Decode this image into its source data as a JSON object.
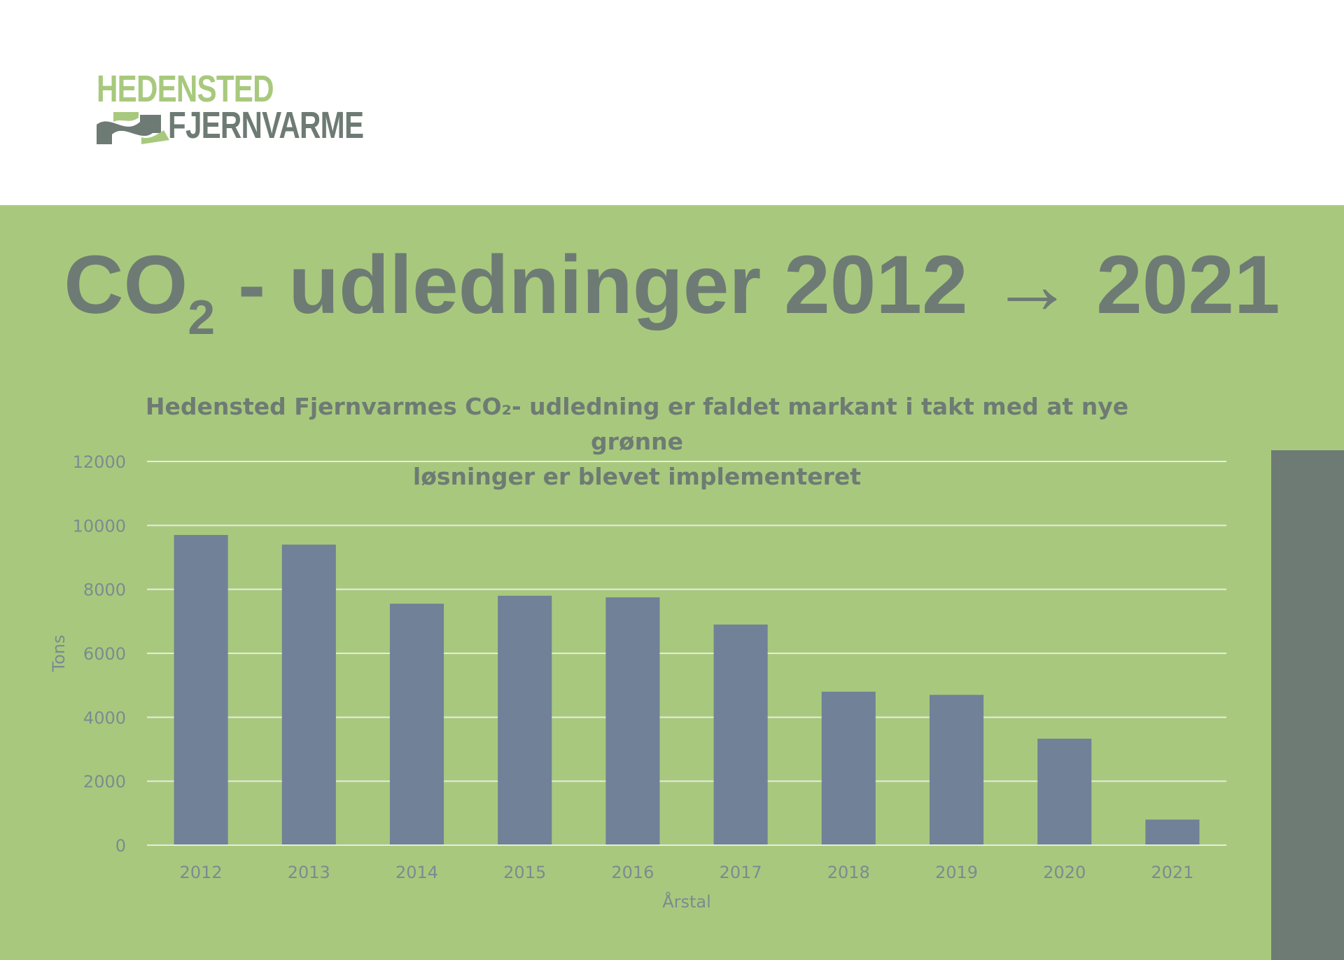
{
  "logo": {
    "line1": "HEDENSTED",
    "line2": "FJERNVARME",
    "colors": {
      "light": "#a8c97d",
      "dark": "#6e7b74"
    }
  },
  "headline": {
    "prefix": "CO",
    "subscript": "2",
    "suffix": " - udledninger 2012 → 2021"
  },
  "colors": {
    "panel": "#a8c97d",
    "accent": "#6e7b74",
    "bar": "#708198",
    "grid": "#e6ecdf",
    "axis_text": "#7d8a91"
  },
  "chart_data": {
    "type": "bar",
    "title": "Hedensted Fjernvarmes CO₂- udledning er faldet markant i takt med at nye grønne løsninger er blevet implementeret",
    "title_lines": [
      "Hedensted Fjernvarmes CO₂- udledning er faldet markant i takt med at nye grønne",
      "løsninger er blevet implementeret"
    ],
    "categories": [
      "2012",
      "2013",
      "2014",
      "2015",
      "2016",
      "2017",
      "2018",
      "2019",
      "2020",
      "2021"
    ],
    "values": [
      9700,
      9400,
      7550,
      7800,
      7750,
      6900,
      4800,
      4700,
      3330,
      800
    ],
    "xlabel": "Årstal",
    "ylabel": "Tons",
    "ylim": [
      0,
      12000
    ],
    "yticks": [
      "0",
      "2000",
      "4000",
      "6000",
      "8000",
      "10000",
      "12000"
    ],
    "grid": true,
    "legend": "none"
  }
}
